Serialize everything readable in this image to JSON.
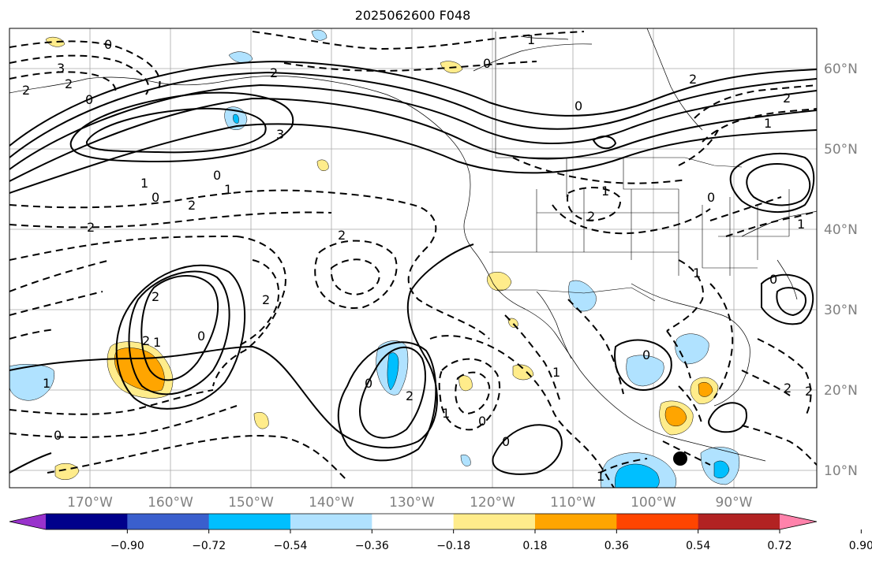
{
  "title": "2025062600 F048",
  "lat_labels": [
    "60°N",
    "50°N",
    "40°N",
    "30°N",
    "20°N",
    "10°N"
  ],
  "lon_labels": [
    "170°W",
    "160°W",
    "150°W",
    "140°W",
    "130°W",
    "120°W",
    "110°W",
    "100°W",
    "90°W"
  ],
  "colorbar": {
    "ticks": [
      "−0.90",
      "−0.72",
      "−0.54",
      "−0.36",
      "−0.18",
      "0.18",
      "0.36",
      "0.54",
      "0.72",
      "0.90"
    ],
    "colors": [
      "#9932cc",
      "#00008b",
      "#3a5fcd",
      "#00bfff",
      "#b0e2ff",
      "#ffffff",
      "#ffec8b",
      "#ffa500",
      "#ff4500",
      "#b22222",
      "#ff82ab"
    ]
  },
  "contour_labels": [
    "3",
    "2",
    "2",
    "0",
    "0",
    "3",
    "2",
    "0",
    "1",
    "2",
    "2",
    "0",
    "1",
    "2",
    "1",
    "2",
    "1",
    "2",
    "2",
    "0",
    "1",
    "0",
    "0",
    "2",
    "0",
    "0",
    "1",
    "1",
    "1",
    "1",
    "2",
    "0",
    "0",
    "2",
    "0",
    "2",
    "1",
    "1",
    "0",
    "2",
    "0",
    "2",
    "1"
  ],
  "marker": {
    "name": "storm-center-dot"
  }
}
